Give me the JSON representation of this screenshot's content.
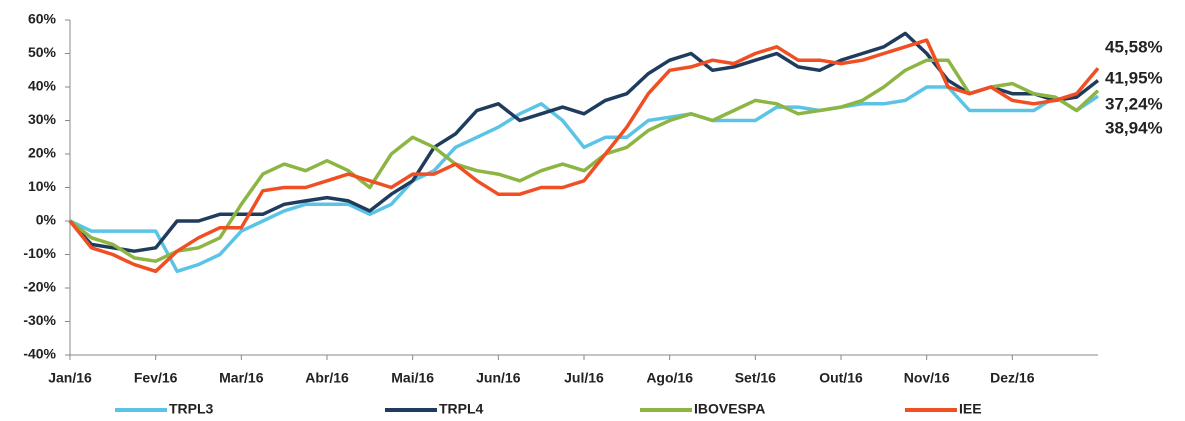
{
  "chart_data": {
    "type": "line",
    "categories": [
      "Jan/16",
      null,
      null,
      null,
      "Fev/16",
      null,
      null,
      null,
      "Mar/16",
      null,
      null,
      null,
      "Abr/16",
      null,
      null,
      null,
      "Mai/16",
      null,
      null,
      null,
      "Jun/16",
      null,
      null,
      null,
      "Jul/16",
      null,
      null,
      null,
      "Ago/16",
      null,
      null,
      null,
      "Set/16",
      null,
      null,
      null,
      "Out/16",
      null,
      null,
      null,
      "Nov/16",
      null,
      null,
      null,
      "Dez/16",
      null,
      null,
      null,
      null
    ],
    "series": [
      {
        "name": "TRPL3",
        "color": "#5bc4e6",
        "end_label": "37,24%",
        "values": [
          0,
          -3,
          -3,
          -3,
          -3,
          -15,
          -13,
          -10,
          -3,
          0,
          3,
          5,
          5,
          5,
          2,
          5,
          12,
          15,
          22,
          25,
          28,
          32,
          35,
          30,
          22,
          25,
          25,
          30,
          31,
          32,
          30,
          30,
          30,
          34,
          34,
          33,
          34,
          35,
          35,
          36,
          40,
          40,
          33,
          33,
          33,
          33,
          37,
          33,
          37.24
        ]
      },
      {
        "name": "TRPL4",
        "color": "#1f3c5e",
        "end_label": "41,95%",
        "values": [
          0,
          -7,
          -8,
          -9,
          -8,
          0,
          0,
          2,
          2,
          2,
          5,
          6,
          7,
          6,
          3,
          8,
          12,
          22,
          26,
          33,
          35,
          30,
          32,
          34,
          32,
          36,
          38,
          44,
          48,
          50,
          45,
          46,
          48,
          50,
          46,
          45,
          48,
          50,
          52,
          56,
          50,
          42,
          38,
          40,
          38,
          38,
          36,
          37,
          41.95
        ]
      },
      {
        "name": "IBOVESPA",
        "color": "#8db543",
        "end_label": "38,94%",
        "values": [
          0,
          -5,
          -7,
          -11,
          -12,
          -9,
          -8,
          -5,
          5,
          14,
          17,
          15,
          18,
          15,
          10,
          20,
          25,
          22,
          17,
          15,
          14,
          12,
          15,
          17,
          15,
          20,
          22,
          27,
          30,
          32,
          30,
          33,
          36,
          35,
          32,
          33,
          34,
          36,
          40,
          45,
          48,
          48,
          38,
          40,
          41,
          38,
          37,
          33,
          38.94
        ]
      },
      {
        "name": "IEE",
        "color": "#f04e23",
        "end_label": "45,58%",
        "values": [
          0,
          -8,
          -10,
          -13,
          -15,
          -9,
          -5,
          -2,
          -2,
          9,
          10,
          10,
          12,
          14,
          12,
          10,
          14,
          14,
          17,
          12,
          8,
          8,
          10,
          10,
          12,
          20,
          28,
          38,
          45,
          46,
          48,
          47,
          50,
          52,
          48,
          48,
          47,
          48,
          50,
          52,
          54,
          40,
          38,
          40,
          36,
          35,
          36,
          38,
          45.58
        ]
      }
    ],
    "ylim": [
      -40,
      60
    ],
    "yticks": [
      {
        "value": -40,
        "label": "-40%"
      },
      {
        "value": -30,
        "label": "-30%"
      },
      {
        "value": -20,
        "label": "-20%"
      },
      {
        "value": -10,
        "label": "-10%"
      },
      {
        "value": 0,
        "label": "0%"
      },
      {
        "value": 10,
        "label": "10%"
      },
      {
        "value": 20,
        "label": "20%"
      },
      {
        "value": 30,
        "label": "30%"
      },
      {
        "value": 40,
        "label": "40%"
      },
      {
        "value": 50,
        "label": "50%"
      },
      {
        "value": 60,
        "label": "60%"
      }
    ],
    "grid": false,
    "legend": "bottom"
  }
}
